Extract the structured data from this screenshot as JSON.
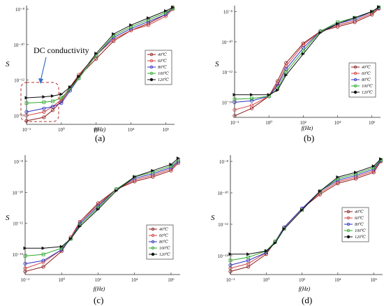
{
  "chart_data": [
    {
      "panel_label": "(a)",
      "type": "line",
      "ylabel": "S",
      "xlabel": "f(Hz)",
      "x_ticks": [
        "10⁻²",
        "10⁰",
        "10²",
        "10⁴",
        "10⁶"
      ],
      "y_ticks": [
        "10⁻¹⁴",
        "10⁻¹²",
        "10⁻¹⁰",
        "10⁻⁸"
      ],
      "xlim_log10": [
        -2,
        6.5
      ],
      "ylim_log10": [
        -14.5,
        -7.8
      ],
      "annotation": "DC conductivity",
      "legend_position": "right",
      "series": [
        {
          "name": "40℃",
          "color": "#8b1a1a",
          "marker": "circle",
          "x_log10": [
            -2,
            -1,
            -0.5,
            0,
            0.5,
            1,
            2,
            3,
            4,
            5,
            6,
            6.4
          ],
          "y_log10": [
            -14.3,
            -14.1,
            -13.7,
            -13.2,
            -12.5,
            -11.8,
            -10.8,
            -9.8,
            -9.2,
            -8.8,
            -8.3,
            -7.9
          ]
        },
        {
          "name": "60℃",
          "color": "#d04040",
          "marker": "circle",
          "x_log10": [
            -2,
            -1,
            -0.5,
            0,
            0.5,
            1,
            2,
            3,
            4,
            5,
            6,
            6.4
          ],
          "y_log10": [
            -14.0,
            -13.8,
            -13.5,
            -13.1,
            -12.4,
            -11.7,
            -10.6,
            -9.7,
            -9.2,
            -8.9,
            -8.4,
            -8.0
          ]
        },
        {
          "name": "80℃",
          "color": "#3030c0",
          "marker": "circle",
          "x_log10": [
            -2,
            -1,
            -0.5,
            0,
            0.5,
            1,
            2,
            3,
            4,
            5,
            6,
            6.4
          ],
          "y_log10": [
            -13.8,
            -13.6,
            -13.5,
            -13.3,
            -12.6,
            -11.9,
            -10.6,
            -9.6,
            -9.1,
            -8.7,
            -8.3,
            -7.95
          ]
        },
        {
          "name": "100℃",
          "color": "#2ea82e",
          "marker": "square",
          "x_log10": [
            -2,
            -1,
            -0.5,
            0,
            0.5,
            1,
            2,
            3,
            4,
            5,
            6,
            6.4
          ],
          "y_log10": [
            -13.3,
            -13.25,
            -13.2,
            -13.0,
            -12.5,
            -11.9,
            -10.6,
            -9.5,
            -9.0,
            -8.6,
            -8.2,
            -7.95
          ]
        },
        {
          "name": "120℃",
          "color": "#111111",
          "marker": "triangle",
          "x_log10": [
            -2,
            -1,
            -0.5,
            0,
            0.5,
            1,
            2,
            3,
            4,
            5,
            6,
            6.4
          ],
          "y_log10": [
            -13.0,
            -12.95,
            -12.9,
            -12.8,
            -12.4,
            -11.8,
            -10.5,
            -9.4,
            -8.9,
            -8.5,
            -8.1,
            -7.9
          ]
        }
      ]
    },
    {
      "panel_label": "(b)",
      "type": "line",
      "ylabel": "S",
      "xlabel": "f(Hz)",
      "x_ticks": [
        "10⁻²",
        "10⁰",
        "10²",
        "10⁴",
        "10⁶"
      ],
      "y_ticks": [
        "10⁻¹⁴",
        "10⁻¹²",
        "10⁻¹⁰",
        "10⁻⁸"
      ],
      "xlim_log10": [
        -2,
        6.5
      ],
      "ylim_log10": [
        -15,
        -7.6
      ],
      "legend_position": "right",
      "series": [
        {
          "name": "40℃",
          "color": "#8b1a1a",
          "marker": "circle",
          "x_log10": [
            -2,
            -1,
            0,
            0.5,
            1,
            2,
            3,
            4,
            5,
            6,
            6.4
          ],
          "y_log10": [
            -14.9,
            -14.4,
            -13.6,
            -12.6,
            -11.4,
            -10.1,
            -9.3,
            -9.0,
            -8.7,
            -8.2,
            -7.8
          ]
        },
        {
          "name": "60℃",
          "color": "#d04040",
          "marker": "circle",
          "x_log10": [
            -2,
            -1,
            0,
            0.5,
            1,
            2,
            3,
            4,
            5,
            6,
            6.4
          ],
          "y_log10": [
            -14.5,
            -14.2,
            -13.6,
            -12.8,
            -11.6,
            -10.2,
            -9.3,
            -8.9,
            -8.6,
            -8.1,
            -7.8
          ]
        },
        {
          "name": "80℃",
          "color": "#3030c0",
          "marker": "circle",
          "x_log10": [
            -2,
            -1,
            0,
            0.5,
            1,
            2,
            3,
            4,
            5,
            6,
            6.4
          ],
          "y_log10": [
            -14.0,
            -13.9,
            -13.6,
            -12.9,
            -11.8,
            -10.4,
            -9.3,
            -8.8,
            -8.5,
            -8.0,
            -7.75
          ]
        },
        {
          "name": "100℃",
          "color": "#2ea82e",
          "marker": "square",
          "x_log10": [
            -2,
            -1,
            0,
            0.5,
            1,
            2,
            3,
            4,
            5,
            6,
            6.4
          ],
          "y_log10": [
            -13.8,
            -13.75,
            -13.6,
            -13.1,
            -12.0,
            -10.6,
            -9.3,
            -8.7,
            -8.4,
            -8.0,
            -7.7
          ]
        },
        {
          "name": "120℃",
          "color": "#111111",
          "marker": "triangle",
          "x_log10": [
            -2,
            -1,
            0,
            0.5,
            1,
            2,
            3,
            4,
            5,
            6,
            6.4
          ],
          "y_log10": [
            -13.5,
            -13.5,
            -13.5,
            -13.2,
            -12.2,
            -10.8,
            -9.4,
            -8.8,
            -8.4,
            -8.0,
            -7.7
          ]
        }
      ]
    },
    {
      "panel_label": "(c)",
      "type": "line",
      "ylabel": "S",
      "xlabel": "f(Hz)",
      "x_ticks": [
        "10⁻²",
        "10⁰",
        "10²",
        "10⁴",
        "10⁶"
      ],
      "y_ticks": [
        "10⁻¹⁴",
        "10⁻¹²",
        "10⁻¹⁰",
        "10⁻⁸"
      ],
      "xlim_log10": [
        -2,
        6.5
      ],
      "ylim_log10": [
        -15.3,
        -7.6
      ],
      "legend_position": "right",
      "series": [
        {
          "name": "40℃",
          "color": "#8b1a1a",
          "marker": "circle",
          "x_log10": [
            -2,
            -1,
            0,
            0.5,
            1,
            2,
            3,
            4,
            5,
            6,
            6.4
          ],
          "y_log10": [
            -15.1,
            -14.8,
            -13.8,
            -12.9,
            -11.9,
            -10.7,
            -9.8,
            -9.3,
            -9.0,
            -8.6,
            -8.1
          ]
        },
        {
          "name": "60℃",
          "color": "#d04040",
          "marker": "circle",
          "x_log10": [
            -2,
            -1,
            0,
            0.5,
            1,
            2,
            3,
            4,
            5,
            6,
            6.4
          ],
          "y_log10": [
            -14.9,
            -14.5,
            -13.7,
            -12.9,
            -11.9,
            -10.8,
            -9.8,
            -9.2,
            -8.9,
            -8.5,
            -8.0
          ]
        },
        {
          "name": "80℃",
          "color": "#3030c0",
          "marker": "circle",
          "x_log10": [
            -2,
            -1,
            0,
            0.5,
            1,
            2,
            3,
            4,
            5,
            6,
            6.4
          ],
          "y_log10": [
            -14.6,
            -14.4,
            -13.7,
            -13.0,
            -12.0,
            -10.9,
            -9.8,
            -9.1,
            -8.8,
            -8.4,
            -8.0
          ]
        },
        {
          "name": "100℃",
          "color": "#2ea82e",
          "marker": "square",
          "x_log10": [
            -2,
            -1,
            0,
            0.5,
            1,
            2,
            3,
            4,
            5,
            6,
            6.4
          ],
          "y_log10": [
            -14.1,
            -14.0,
            -13.6,
            -13.0,
            -12.1,
            -11.0,
            -9.8,
            -9.0,
            -8.7,
            -8.3,
            -7.9
          ]
        },
        {
          "name": "120℃",
          "color": "#111111",
          "marker": "triangle",
          "x_log10": [
            -2,
            -1,
            0,
            0.5,
            1,
            2,
            3,
            4,
            5,
            6,
            6.4
          ],
          "y_log10": [
            -13.6,
            -13.6,
            -13.5,
            -13.0,
            -12.2,
            -11.1,
            -9.9,
            -9.0,
            -8.6,
            -8.2,
            -7.8
          ]
        }
      ]
    },
    {
      "panel_label": "(d)",
      "type": "line",
      "ylabel": "S",
      "xlabel": "f(Hz)",
      "x_ticks": [
        "10⁻²",
        "10⁰",
        "10²",
        "10⁴",
        "10⁶"
      ],
      "y_ticks": [
        "10⁻¹⁴",
        "10⁻¹²",
        "10⁻¹⁰",
        "10⁻⁸"
      ],
      "xlim_log10": [
        -2,
        6.5
      ],
      "ylim_log10": [
        -15.2,
        -7.6
      ],
      "legend_position": "right",
      "series": [
        {
          "name": "40℃",
          "color": "#8b1a1a",
          "marker": "circle",
          "x_log10": [
            -2,
            -1,
            0,
            0.5,
            1,
            2,
            3,
            4,
            5,
            6,
            6.4
          ],
          "y_log10": [
            -15.0,
            -14.7,
            -13.9,
            -13.1,
            -12.2,
            -11.0,
            -10.1,
            -9.4,
            -9.1,
            -8.7,
            -8.0
          ]
        },
        {
          "name": "60℃",
          "color": "#d04040",
          "marker": "circle",
          "x_log10": [
            -2,
            -1,
            0,
            0.5,
            1,
            2,
            3,
            4,
            5,
            6,
            6.4
          ],
          "y_log10": [
            -14.8,
            -14.5,
            -13.8,
            -13.1,
            -12.2,
            -11.0,
            -10.0,
            -9.3,
            -9.0,
            -8.6,
            -8.0
          ]
        },
        {
          "name": "80℃",
          "color": "#3030c0",
          "marker": "circle",
          "x_log10": [
            -2,
            -1,
            0,
            0.5,
            1,
            2,
            3,
            4,
            5,
            6,
            6.4
          ],
          "y_log10": [
            -14.6,
            -14.3,
            -13.8,
            -13.1,
            -12.2,
            -11.0,
            -9.9,
            -9.2,
            -8.9,
            -8.5,
            -7.95
          ]
        },
        {
          "name": "100℃",
          "color": "#2ea82e",
          "marker": "square",
          "x_log10": [
            -2,
            -1,
            0,
            0.5,
            1,
            2,
            3,
            4,
            5,
            6,
            6.4
          ],
          "y_log10": [
            -14.3,
            -14.1,
            -13.7,
            -13.1,
            -12.3,
            -11.1,
            -9.9,
            -9.1,
            -8.8,
            -8.4,
            -7.9
          ]
        },
        {
          "name": "120℃",
          "color": "#111111",
          "marker": "triangle",
          "x_log10": [
            -2,
            -1,
            0,
            0.5,
            1,
            2,
            3,
            4,
            5,
            6,
            6.4
          ],
          "y_log10": [
            -13.9,
            -13.9,
            -13.7,
            -13.2,
            -12.3,
            -11.1,
            -9.9,
            -9.0,
            -8.7,
            -8.3,
            -7.85
          ]
        }
      ]
    }
  ]
}
